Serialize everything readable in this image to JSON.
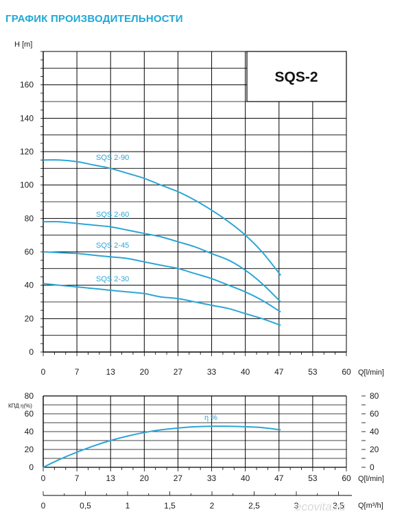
{
  "page": {
    "title": "ГРАФИК ПРОИЗВОДИТЕЛЬНОСТИ",
    "accent_color": "#1fa8d8",
    "curve_color": "#2aa6d6",
    "watermark": "ecovita.ru"
  },
  "chart_data": [
    {
      "type": "line",
      "title": "SQS-2",
      "ylabel": "H [m]",
      "xlabel": "Q[l/min]",
      "xlim": [
        0,
        60
      ],
      "ylim": [
        0,
        180
      ],
      "x_ticks": [
        "0",
        "7",
        "13",
        "20",
        "27",
        "33",
        "40",
        "47",
        "53",
        "60"
      ],
      "y_ticks": [
        "0",
        "20",
        "40",
        "60",
        "80",
        "100",
        "120",
        "140",
        "160"
      ],
      "grid": true,
      "series": [
        {
          "name": "SQS 2-90",
          "x": [
            0,
            3.3,
            6.7,
            10,
            13.3,
            16.7,
            20,
            23.3,
            26.7,
            30,
            33.3,
            36.7,
            40,
            43.3,
            47
          ],
          "y": [
            115,
            115,
            114,
            112,
            110,
            107,
            104,
            100,
            96,
            91,
            85,
            78,
            70,
            60,
            46
          ]
        },
        {
          "name": "SQS 2-60",
          "x": [
            0,
            3.3,
            6.7,
            10,
            13.3,
            16.7,
            20,
            23.3,
            26.7,
            30,
            33.3,
            36.7,
            40,
            43.3,
            47
          ],
          "y": [
            78,
            78,
            77,
            76,
            75,
            73,
            71,
            69,
            66,
            63,
            59,
            55,
            49,
            41,
            30
          ]
        },
        {
          "name": "SQS 2-45",
          "x": [
            0,
            3.3,
            6.7,
            10,
            13.3,
            16.7,
            20,
            23.3,
            26.7,
            30,
            33.3,
            36.7,
            40,
            43.3,
            47
          ],
          "y": [
            60,
            59.5,
            59,
            58,
            57,
            56,
            54,
            52,
            50,
            47,
            44,
            40,
            36,
            31,
            24
          ]
        },
        {
          "name": "SQS 2-30",
          "x": [
            0,
            3.3,
            6.7,
            10,
            13.3,
            16.7,
            20,
            23.3,
            26.7,
            30,
            33.3,
            36.7,
            40,
            43.3,
            47
          ],
          "y": [
            41,
            40,
            39,
            38,
            37,
            36,
            35,
            33,
            32,
            30,
            28,
            26,
            23,
            20,
            16
          ]
        }
      ]
    },
    {
      "type": "line",
      "ylabel": "КПД η(%)",
      "xlabel": "Q[l/min]",
      "xlim": [
        0,
        60
      ],
      "ylim": [
        0,
        80
      ],
      "x_ticks": [
        "0",
        "7",
        "13",
        "20",
        "27",
        "33",
        "40",
        "47",
        "53",
        "60"
      ],
      "y_ticks": [
        "0",
        "20",
        "40",
        "60",
        "80"
      ],
      "y_ticks_right": [
        "0",
        "20",
        "40",
        "60",
        "80"
      ],
      "secondary_xlabel": "Q[m³/h]",
      "secondary_x_ticks": [
        "0",
        "0,5",
        "1",
        "1,5",
        "2",
        "2,5",
        "3",
        "3,5"
      ],
      "grid": true,
      "series": [
        {
          "name": "η %",
          "x": [
            0,
            3.3,
            6.7,
            10,
            13.3,
            16.7,
            20,
            23.3,
            26.7,
            30,
            33.3,
            36.7,
            40,
            43.3,
            47
          ],
          "y": [
            0,
            9,
            17,
            24,
            30,
            35,
            39,
            42,
            44,
            45.5,
            46,
            46,
            45.5,
            44.5,
            42
          ]
        }
      ]
    }
  ]
}
